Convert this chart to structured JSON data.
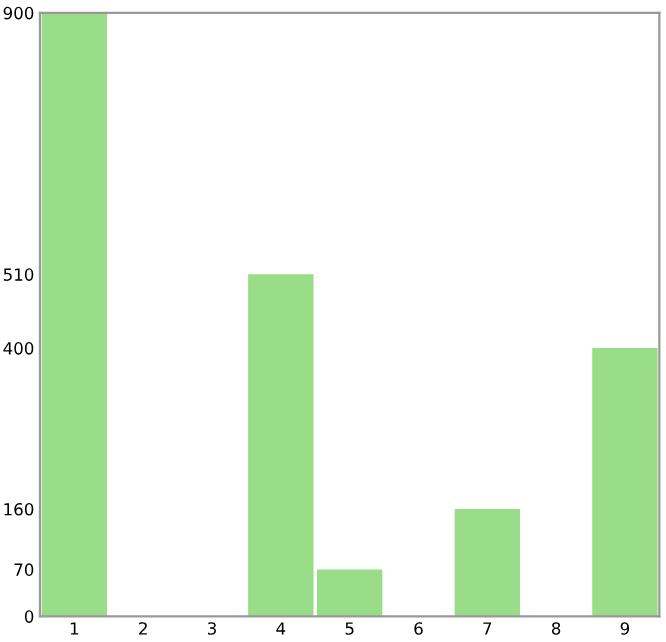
{
  "chart_data": {
    "type": "bar",
    "categories": [
      "1",
      "2",
      "3",
      "4",
      "5",
      "6",
      "7",
      "8",
      "9"
    ],
    "values": [
      900,
      0,
      0,
      510,
      70,
      0,
      160,
      0,
      400
    ],
    "color": "#99dd88",
    "ylim": [
      0,
      900
    ],
    "yticks": [
      0,
      70,
      160,
      400,
      510,
      900
    ],
    "grid": false
  }
}
